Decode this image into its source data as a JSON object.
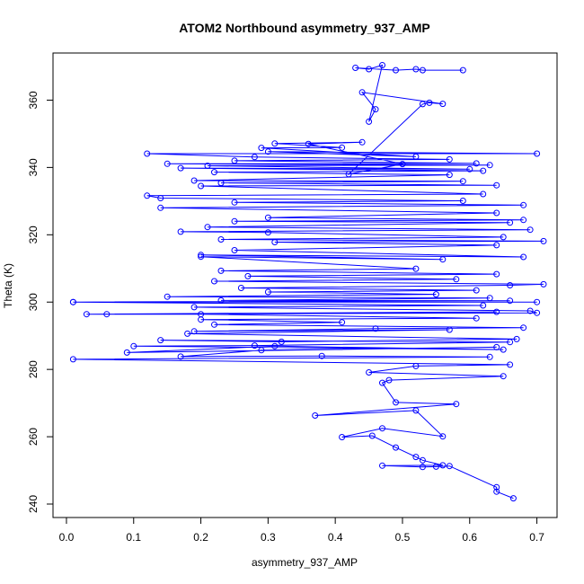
{
  "chart_data": {
    "type": "line",
    "title": "ATOM2 Northbound asymmetry_937_AMP",
    "xlabel": "asymmetry_937_AMP",
    "ylabel": "Theta (K)",
    "xlim": [
      -0.02,
      0.73
    ],
    "ylim": [
      236,
      374
    ],
    "x_ticks": [
      0.0,
      0.1,
      0.2,
      0.3,
      0.4,
      0.5,
      0.6,
      0.7
    ],
    "x_tick_labels": [
      "0.0",
      "0.1",
      "0.2",
      "0.3",
      "0.4",
      "0.5",
      "0.6",
      "0.7"
    ],
    "y_ticks": [
      240,
      260,
      280,
      300,
      320,
      340,
      360
    ],
    "y_tick_labels": [
      "240",
      "260",
      "280",
      "300",
      "320",
      "340",
      "360"
    ],
    "grid": false,
    "legend": "none",
    "series_color": "#0000ff",
    "series": [
      {
        "values": [
          [
            0.665,
            241.7
          ],
          [
            0.64,
            243.7
          ],
          [
            0.64,
            245.0
          ],
          [
            0.57,
            251.3
          ],
          [
            0.55,
            251.1
          ],
          [
            0.53,
            251.0
          ],
          [
            0.47,
            251.4
          ],
          [
            0.56,
            251.5
          ],
          [
            0.53,
            253.0
          ],
          [
            0.52,
            254.0
          ],
          [
            0.49,
            256.8
          ],
          [
            0.455,
            260.3
          ],
          [
            0.41,
            259.9
          ],
          [
            0.47,
            262.5
          ],
          [
            0.56,
            260.1
          ],
          [
            0.52,
            267.8
          ],
          [
            0.37,
            266.3
          ],
          [
            0.58,
            269.7
          ],
          [
            0.49,
            270.2
          ],
          [
            0.47,
            276.0
          ],
          [
            0.48,
            276.8
          ],
          [
            0.65,
            278.0
          ],
          [
            0.45,
            279.1
          ],
          [
            0.52,
            281.0
          ],
          [
            0.66,
            281.4
          ],
          [
            0.01,
            283.0
          ],
          [
            0.63,
            283.7
          ],
          [
            0.38,
            284.0
          ],
          [
            0.17,
            283.8
          ],
          [
            0.29,
            285.7
          ],
          [
            0.64,
            286.6
          ],
          [
            0.09,
            285.0
          ],
          [
            0.31,
            286.9
          ],
          [
            0.65,
            285.9
          ],
          [
            0.1,
            286.9
          ],
          [
            0.28,
            287.1
          ],
          [
            0.66,
            288.1
          ],
          [
            0.14,
            288.7
          ],
          [
            0.32,
            288.2
          ],
          [
            0.67,
            289.0
          ],
          [
            0.18,
            290.6
          ],
          [
            0.57,
            291.8
          ],
          [
            0.19,
            291.3
          ],
          [
            0.46,
            292.1
          ],
          [
            0.68,
            292.4
          ],
          [
            0.22,
            293.3
          ],
          [
            0.41,
            294.0
          ],
          [
            0.2,
            294.8
          ],
          [
            0.61,
            295.2
          ],
          [
            0.2,
            296.4
          ],
          [
            0.06,
            296.4
          ],
          [
            0.64,
            297.1
          ],
          [
            0.03,
            296.4
          ],
          [
            0.7,
            296.8
          ],
          [
            0.69,
            297.4
          ],
          [
            0.19,
            298.5
          ],
          [
            0.62,
            299.0
          ],
          [
            0.01,
            300.0
          ],
          [
            0.7,
            300.0
          ],
          [
            0.01,
            300.0
          ],
          [
            0.66,
            300.4
          ],
          [
            0.23,
            300.5
          ],
          [
            0.63,
            301.2
          ],
          [
            0.15,
            301.6
          ],
          [
            0.55,
            302.3
          ],
          [
            0.3,
            303.0
          ],
          [
            0.61,
            303.5
          ],
          [
            0.26,
            304.2
          ],
          [
            0.66,
            305.0
          ],
          [
            0.71,
            305.3
          ],
          [
            0.22,
            306.2
          ],
          [
            0.58,
            306.8
          ],
          [
            0.27,
            307.7
          ],
          [
            0.64,
            308.3
          ],
          [
            0.23,
            309.3
          ],
          [
            0.52,
            309.9
          ],
          [
            0.2,
            313.5
          ],
          [
            0.56,
            312.7
          ],
          [
            0.2,
            314.0
          ],
          [
            0.68,
            313.4
          ],
          [
            0.25,
            315.4
          ],
          [
            0.64,
            316.9
          ],
          [
            0.31,
            317.8
          ],
          [
            0.71,
            318.1
          ],
          [
            0.23,
            318.6
          ],
          [
            0.65,
            319.3
          ],
          [
            0.3,
            320.7
          ],
          [
            0.17,
            320.9
          ],
          [
            0.69,
            321.5
          ],
          [
            0.21,
            322.3
          ],
          [
            0.66,
            323.6
          ],
          [
            0.25,
            324.0
          ],
          [
            0.68,
            324.4
          ],
          [
            0.3,
            325.1
          ],
          [
            0.64,
            326.5
          ],
          [
            0.14,
            328.0
          ],
          [
            0.68,
            328.8
          ],
          [
            0.25,
            329.6
          ],
          [
            0.59,
            330.1
          ],
          [
            0.14,
            330.9
          ],
          [
            0.12,
            331.6
          ],
          [
            0.62,
            332.1
          ],
          [
            0.2,
            334.5
          ],
          [
            0.64,
            334.7
          ],
          [
            0.23,
            335.4
          ],
          [
            0.59,
            335.9
          ],
          [
            0.19,
            336.1
          ],
          [
            0.57,
            337.8
          ],
          [
            0.22,
            338.6
          ],
          [
            0.62,
            339.0
          ],
          [
            0.17,
            339.8
          ],
          [
            0.6,
            339.5
          ],
          [
            0.21,
            340.5
          ],
          [
            0.63,
            340.7
          ],
          [
            0.15,
            341.1
          ],
          [
            0.61,
            341.2
          ],
          [
            0.25,
            342.0
          ],
          [
            0.57,
            342.4
          ],
          [
            0.28,
            343.1
          ],
          [
            0.12,
            344.1
          ],
          [
            0.7,
            344.1
          ],
          [
            0.3,
            344.7
          ],
          [
            0.52,
            343.2
          ],
          [
            0.29,
            345.8
          ],
          [
            0.41,
            345.9
          ],
          [
            0.31,
            347.1
          ],
          [
            0.44,
            347.5
          ],
          [
            0.36,
            347.0
          ],
          [
            0.5,
            341.0
          ],
          [
            0.42,
            338.0
          ],
          [
            0.53,
            358.8
          ],
          [
            0.54,
            359.2
          ],
          [
            0.56,
            358.9
          ],
          [
            0.44,
            362.3
          ],
          [
            0.46,
            357.3
          ],
          [
            0.45,
            353.6
          ],
          [
            0.47,
            370.4
          ],
          [
            0.45,
            369.2
          ],
          [
            0.43,
            369.6
          ],
          [
            0.49,
            368.9
          ],
          [
            0.52,
            369.2
          ],
          [
            0.53,
            368.9
          ],
          [
            0.59,
            368.9
          ]
        ]
      }
    ]
  }
}
